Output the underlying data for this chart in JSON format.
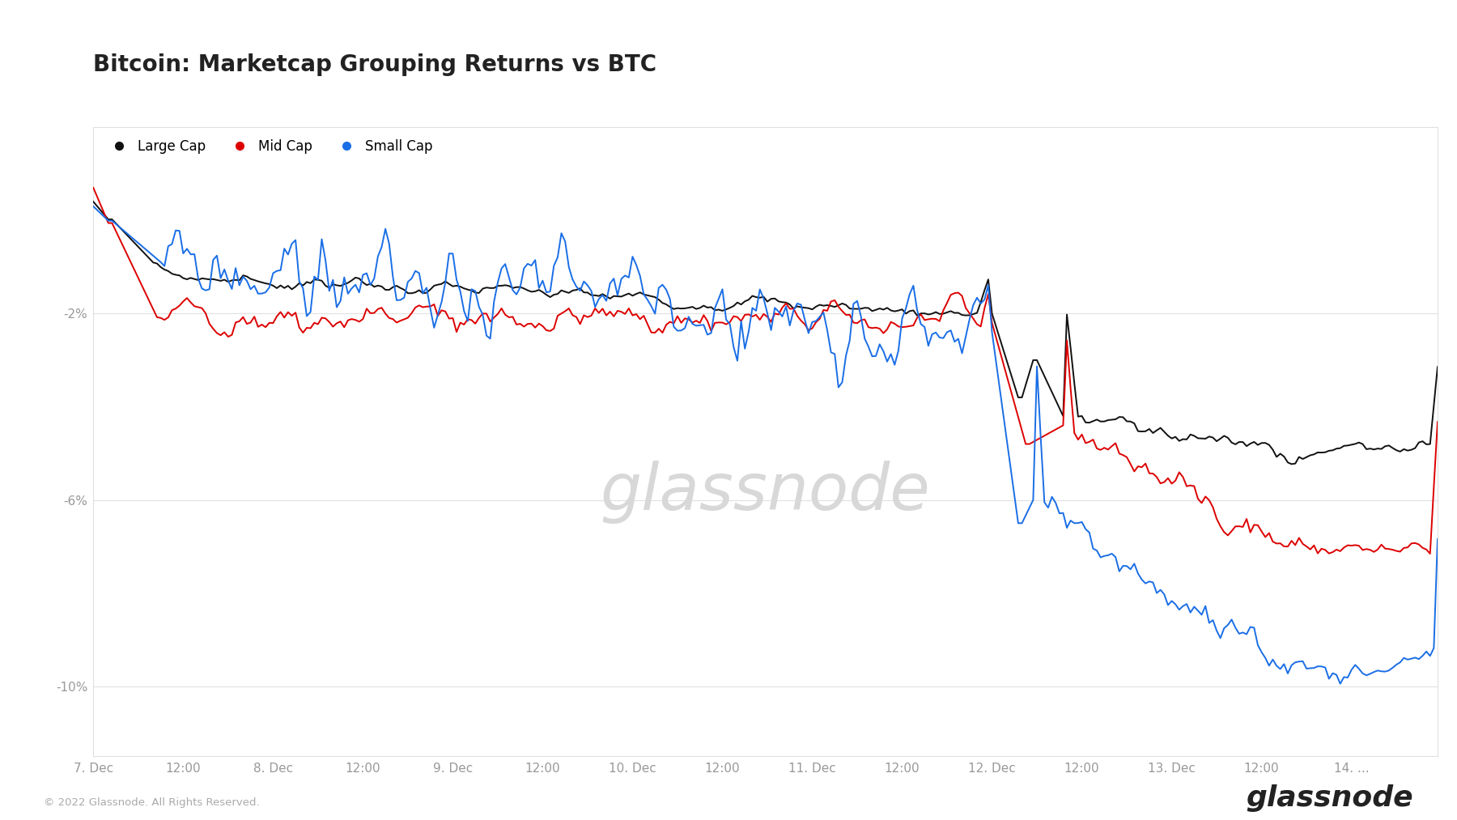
{
  "title": "Bitcoin: Marketcap Grouping Returns vs BTC",
  "legend_labels": [
    "Large Cap",
    "Mid Cap",
    "Small Cap"
  ],
  "legend_colors": [
    "#111111",
    "#dd0000",
    "#1a6ee6"
  ],
  "line_colors": [
    "#111111",
    "#dd0000",
    "#1a6ee6"
  ],
  "yticks": [
    -0.02,
    -0.06,
    -0.1
  ],
  "ytick_labels": [
    "-2%",
    "-6%",
    "-10%"
  ],
  "ylim": [
    -0.115,
    0.02
  ],
  "xlabel_ticks": [
    "7. Dec",
    "12:00",
    "8. Dec",
    "12:00",
    "9. Dec",
    "12:00",
    "10. Dec",
    "12:00",
    "11. Dec",
    "12:00",
    "12. Dec",
    "12:00",
    "13. Dec",
    "12:00",
    "14. ..."
  ],
  "background_color": "#ffffff",
  "plot_bg_color": "#ffffff",
  "grid_color": "#e0e0e0",
  "watermark_text": "glassnode",
  "watermark_color": "#d8d8d8",
  "footer_left": "© 2022 Glassnode. All Rights Reserved.",
  "footer_right": "glassnode",
  "title_fontsize": 20,
  "label_fontsize": 12,
  "tick_fontsize": 11
}
